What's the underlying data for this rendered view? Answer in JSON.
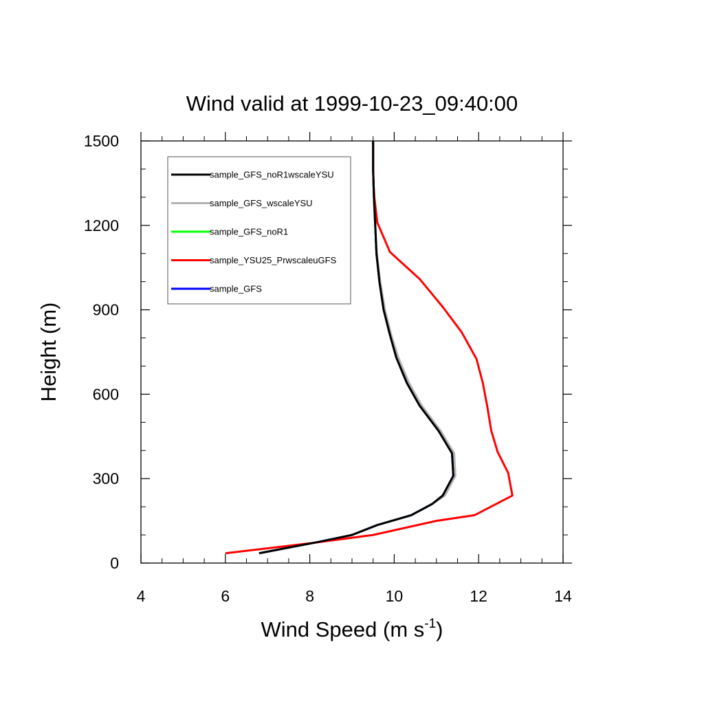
{
  "chart_data": {
    "type": "line",
    "title": "Wind valid at 1999-10-23_09:40:00",
    "xlabel": "Wind Speed (m s",
    "xlabel_superscript": "-1",
    "xlabel_suffix": ")",
    "ylabel": "Height (m)",
    "xlim": [
      4,
      14
    ],
    "ylim": [
      0,
      1500
    ],
    "xticks": [
      4,
      6,
      8,
      10,
      12,
      14
    ],
    "yticks": [
      0,
      300,
      600,
      900,
      1200,
      1500
    ],
    "xtick_labels": [
      "4",
      "6",
      "8",
      "10",
      "12",
      "14"
    ],
    "ytick_labels": [
      "0",
      "300",
      "600",
      "900",
      "1200",
      "1500"
    ],
    "grid": false,
    "legend_position": "top-left",
    "series": [
      {
        "name": "sample_GFS_noR1wscaleYSU",
        "color": "#000000",
        "x": [
          6.8,
          7.5,
          8.2,
          9.0,
          9.6,
          10.4,
          10.9,
          11.15,
          11.4,
          11.37,
          11.05,
          10.6,
          10.3,
          10.05,
          9.9,
          9.75,
          9.65,
          9.58,
          9.55,
          9.52,
          9.5,
          9.5
        ],
        "y": [
          35,
          55,
          75,
          100,
          135,
          170,
          210,
          240,
          310,
          390,
          470,
          560,
          640,
          730,
          810,
          900,
          1000,
          1100,
          1200,
          1300,
          1400,
          1500
        ]
      },
      {
        "name": "sample_GFS_wscaleYSU",
        "color": "#b3b3b3",
        "x": [
          6.8,
          7.5,
          8.2,
          9.0,
          9.6,
          10.4,
          10.9,
          11.2,
          11.45,
          11.42,
          11.1,
          10.65,
          10.35,
          10.1,
          9.93,
          9.78,
          9.67,
          9.59,
          9.55,
          9.52,
          9.5,
          9.5
        ],
        "y": [
          35,
          55,
          75,
          100,
          135,
          170,
          210,
          240,
          310,
          390,
          470,
          560,
          640,
          730,
          810,
          900,
          1000,
          1100,
          1200,
          1300,
          1400,
          1500
        ]
      },
      {
        "name": "sample_GFS_noR1",
        "color": "#00ff00",
        "x": [
          6.8,
          7.5,
          8.2,
          9.0,
          9.6,
          10.4,
          10.9,
          11.15,
          11.4,
          11.37,
          11.05,
          10.6,
          10.3,
          10.05,
          9.9,
          9.75,
          9.65,
          9.58,
          9.55,
          9.52,
          9.5,
          9.5
        ],
        "y": [
          35,
          55,
          75,
          100,
          135,
          170,
          210,
          240,
          310,
          390,
          470,
          560,
          640,
          730,
          810,
          900,
          1000,
          1100,
          1200,
          1300,
          1400,
          1500
        ]
      },
      {
        "name": "sample_YSU25_PrwscaleuGFS",
        "color": "#ff0000",
        "x": [
          6.0,
          8.0,
          9.5,
          11.0,
          11.9,
          12.8,
          12.7,
          12.45,
          12.3,
          12.2,
          12.1,
          11.95,
          11.6,
          11.15,
          10.6,
          9.9,
          9.6,
          9.53,
          9.51,
          9.5,
          9.5
        ],
        "y": [
          35,
          70,
          100,
          150,
          170,
          240,
          320,
          395,
          470,
          560,
          640,
          725,
          820,
          910,
          1010,
          1105,
          1210,
          1300,
          1350,
          1400,
          1500
        ]
      },
      {
        "name": "sample_GFS",
        "color": "#0000ff",
        "x": [
          6.8,
          7.5,
          8.2,
          9.0,
          9.6,
          10.4,
          10.9,
          11.15,
          11.4,
          11.37,
          11.05,
          10.6,
          10.3,
          10.05,
          9.9,
          9.75,
          9.65,
          9.58,
          9.55,
          9.52,
          9.5,
          9.5
        ],
        "y": [
          35,
          55,
          75,
          100,
          135,
          170,
          210,
          240,
          310,
          390,
          470,
          560,
          640,
          730,
          810,
          900,
          1000,
          1100,
          1200,
          1300,
          1400,
          1500
        ]
      }
    ],
    "draw_order": [
      2,
      4,
      1,
      3,
      0
    ]
  }
}
